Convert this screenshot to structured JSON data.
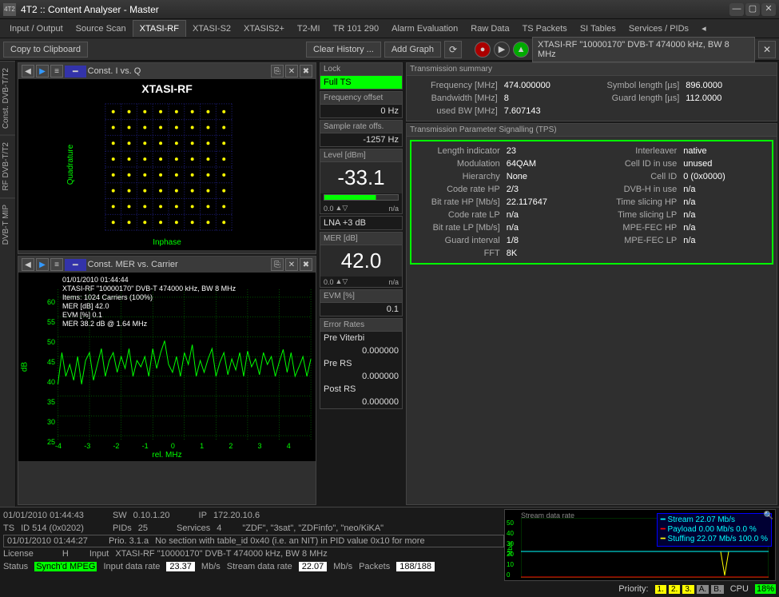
{
  "window": {
    "title": "4T2 :: Content Analyser - Master",
    "icon_label": "4T2"
  },
  "tabs": [
    "Input / Output",
    "Source Scan",
    "XTASI-RF",
    "XTASI-S2",
    "XTASIS2+",
    "T2-MI",
    "TR 101 290",
    "Alarm Evaluation",
    "Raw Data",
    "TS Packets",
    "SI Tables",
    "Services / PIDs"
  ],
  "active_tab": 2,
  "vtabs": [
    "Const. DVB-T/T2",
    "RF DVB-T/T2",
    "DVB-T MIP"
  ],
  "toolbar": {
    "copy": "Copy to Clipboard",
    "clear": "Clear History ...",
    "add": "Add Graph",
    "dropdown": "XTASI-RF \"10000170\" DVB-T 474000 kHz, BW 8 MHz"
  },
  "chart1": {
    "title": "Const. I vs. Q",
    "device": "XTASI-RF",
    "ylabel": "Quadrature",
    "xlabel": "Inphase"
  },
  "chart2": {
    "title": "Const. MER vs. Carrier",
    "overlay": [
      "01/01/2010 01:44:44",
      "XTASI-RF \"10000170\" DVB-T 474000 kHz, BW 8 MHz",
      "Items: 1024 Carriers (100%)",
      "MER [dB] 42.0",
      "EVM [%] 0.1",
      "MER 38.2 dB @ 1.64 MHz"
    ],
    "ylabel": "dB",
    "xlabel": "rel. MHz",
    "yticks": [
      "60",
      "55",
      "50",
      "45",
      "40",
      "35",
      "30",
      "25"
    ],
    "xticks": [
      "-4",
      "-3",
      "-2",
      "-1",
      "0",
      "1",
      "2",
      "3",
      "4"
    ]
  },
  "lock": {
    "header": "Lock",
    "status": "Full TS"
  },
  "freq_offset": {
    "header": "Frequency offset",
    "value": "0 Hz"
  },
  "sample_offset": {
    "header": "Sample rate offs.",
    "value": "-1257 Hz"
  },
  "level": {
    "header": "Level [dBm]",
    "value": "-33.1",
    "sub": "0.0",
    "na": "n/a"
  },
  "lna": {
    "value": "LNA +3 dB"
  },
  "mer": {
    "header": "MER [dB]",
    "value": "42.0",
    "sub": "0.0",
    "na": "n/a"
  },
  "evm": {
    "header": "EVM [%]",
    "value": "0.1"
  },
  "err": {
    "header": "Error Rates",
    "previterbi_l": "Pre Viterbi",
    "previterbi_v": "0.000000",
    "prers_l": "Pre RS",
    "prers_v": "0.000000",
    "postrs_l": "Post RS",
    "postrs_v": "0.000000"
  },
  "summary": {
    "header": "Transmission summary",
    "rows": [
      {
        "l1": "Frequency [MHz]",
        "v1": "474.000000",
        "l2": "Symbol length [µs]",
        "v2": "896.0000"
      },
      {
        "l1": "Bandwidth [MHz]",
        "v1": "8",
        "l2": "Guard length [µs]",
        "v2": "112.0000"
      },
      {
        "l1": "used BW [MHz]",
        "v1": "7.607143",
        "l2": "",
        "v2": ""
      }
    ]
  },
  "tps": {
    "header": "Transmission Parameter Signalling (TPS)",
    "rows": [
      {
        "l1": "Length indicator",
        "v1": "23",
        "l2": "Interleaver",
        "v2": "native"
      },
      {
        "l1": "Modulation",
        "v1": "64QAM",
        "l2": "Cell ID in use",
        "v2": "unused"
      },
      {
        "l1": "Hierarchy",
        "v1": "None",
        "l2": "Cell ID",
        "v2": "0 (0x0000)"
      },
      {
        "l1": "Code rate HP",
        "v1": "2/3",
        "l2": "DVB-H in use",
        "v2": "n/a"
      },
      {
        "l1": "Bit rate HP [Mb/s]",
        "v1": "22.117647",
        "l2": "Time slicing HP",
        "v2": "n/a"
      },
      {
        "l1": "Code rate LP",
        "v1": "n/a",
        "l2": "Time slicing LP",
        "v2": "n/a"
      },
      {
        "l1": "Bit rate LP [Mb/s]",
        "v1": "n/a",
        "l2": "MPE-FEC HP",
        "v2": "n/a"
      },
      {
        "l1": "Guard interval",
        "v1": "1/8",
        "l2": "MPE-FEC LP",
        "v2": "n/a"
      },
      {
        "l1": "FFT",
        "v1": "8K",
        "l2": "",
        "v2": ""
      }
    ]
  },
  "log": {
    "row1": {
      "ts": "01/01/2010 01:44:43",
      "sw_l": "SW",
      "sw_v": "0.10.1.20",
      "ip_l": "IP",
      "ip_v": "172.20.10.6"
    },
    "row2": {
      "ts_l": "TS",
      "ts_v": "ID 514 (0x0202)",
      "pids_l": "PIDs",
      "pids_v": "25",
      "svc_l": "Services",
      "svc_v": "4",
      "names": "\"ZDF\", \"3sat\", \"ZDFinfo\", \"neo/KiKA\""
    },
    "row3": {
      "ts": "01/01/2010 01:44:27",
      "prio": "Prio. 3.1.a",
      "msg": "No section with table_id 0x40 (i.e. an NIT) in PID value 0x10 for more"
    },
    "row4": {
      "lic_l": "License",
      "lic_v": "H",
      "inp_l": "Input",
      "inp_v": "XTASI-RF \"10000170\" DVB-T 474000 kHz, BW 8 MHz"
    },
    "row5": {
      "st_l": "Status",
      "st_v": "Synch'd MPEG",
      "idr_l": "Input data rate",
      "idr_v": "23.37",
      "idr_u": "Mb/s",
      "sdr_l": "Stream data rate",
      "sdr_v": "22.07",
      "sdr_u": "Mb/s",
      "pk_l": "Packets",
      "pk_v": "188/188"
    }
  },
  "rate": {
    "header": "Stream data rate",
    "yticks": [
      "50",
      "40",
      "30",
      "20",
      "10",
      "0"
    ],
    "yunit": "Mb/s",
    "legend": [
      {
        "color": "#0ff",
        "label": "Stream",
        "val": "22.07 Mb/s",
        "pct": ""
      },
      {
        "color": "#f00",
        "label": "Payload",
        "val": "0.00 Mb/s",
        "pct": "0.0 %"
      },
      {
        "color": "#ff0",
        "label": "Stuffing",
        "val": "22.07 Mb/s",
        "pct": "100.0 %"
      }
    ]
  },
  "priority": {
    "label": "Priority:",
    "btns": [
      "1.",
      "2.",
      "3.",
      "A.",
      "B."
    ],
    "cpu_l": "CPU",
    "cpu_v": "18%"
  }
}
